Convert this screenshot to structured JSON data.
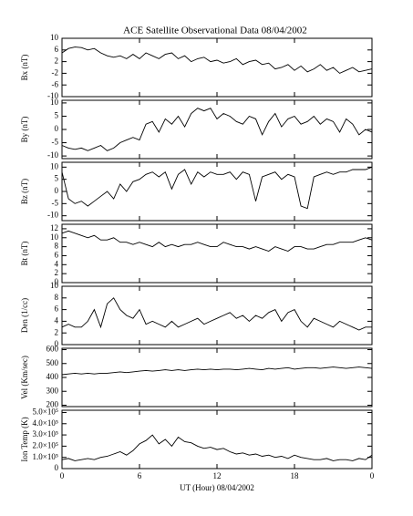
{
  "chart_data": [
    {
      "type": "line",
      "title": "ACE Satellite Observational Data   08/04/2002",
      "ylabel": "Bx (nT)",
      "color": "#000000",
      "x": [
        0,
        0.5,
        1,
        1.5,
        2,
        2.5,
        3,
        3.5,
        4,
        4.5,
        5,
        5.5,
        6,
        6.5,
        7,
        7.5,
        8,
        8.5,
        9,
        9.5,
        10,
        10.5,
        11,
        11.5,
        12,
        12.5,
        13,
        13.5,
        14,
        14.5,
        15,
        15.5,
        16,
        16.5,
        17,
        17.5,
        18,
        18.5,
        19,
        19.5,
        20,
        20.5,
        21,
        21.5,
        22,
        22.5,
        23,
        23.5,
        24
      ],
      "values": [
        5,
        6.5,
        7,
        6.8,
        6,
        6.5,
        5,
        4,
        3.5,
        4,
        3,
        4.5,
        3,
        5,
        4,
        3,
        4.5,
        5,
        3,
        4,
        2,
        3,
        3.5,
        2,
        2.5,
        1.5,
        2,
        3,
        1,
        2,
        2.5,
        1,
        1.5,
        -0.5,
        0,
        1,
        -1,
        0.5,
        -1.5,
        -0.5,
        1,
        -1,
        0,
        -2,
        -1,
        0,
        -1.5,
        -1,
        -0.5
      ],
      "xlim": [
        0,
        24
      ],
      "xticks": [
        0,
        6,
        12,
        18,
        24
      ],
      "ylim": [
        -10,
        10
      ],
      "yticks": [
        -10,
        -6,
        -2,
        2,
        6,
        10
      ]
    },
    {
      "type": "line",
      "ylabel": "By (nT)",
      "color": "#000000",
      "x": [
        0,
        0.5,
        1,
        1.5,
        2,
        2.5,
        3,
        3.5,
        4,
        4.5,
        5,
        5.5,
        6,
        6.5,
        7,
        7.5,
        8,
        8.5,
        9,
        9.5,
        10,
        10.5,
        11,
        11.5,
        12,
        12.5,
        13,
        13.5,
        14,
        14.5,
        15,
        15.5,
        16,
        16.5,
        17,
        17.5,
        18,
        18.5,
        19,
        19.5,
        20,
        20.5,
        21,
        21.5,
        22,
        22.5,
        23,
        23.5,
        24
      ],
      "values": [
        -6,
        -7,
        -7.5,
        -7,
        -8,
        -7,
        -6,
        -8,
        -7,
        -5,
        -4,
        -3,
        -4,
        2,
        3,
        -1,
        4,
        2,
        5,
        1,
        6,
        8,
        7,
        8,
        4,
        6,
        5,
        3,
        2,
        5,
        4,
        -2,
        3,
        6,
        1,
        4,
        5,
        2,
        3,
        5,
        2,
        4,
        3,
        -1,
        4,
        2,
        -2,
        0,
        -1
      ],
      "xlim": [
        0,
        24
      ],
      "xticks": [
        0,
        6,
        12,
        18,
        24
      ],
      "ylim": [
        -11,
        11
      ],
      "yticks": [
        -10,
        -5,
        0,
        5,
        10
      ]
    },
    {
      "type": "line",
      "ylabel": "Bz (nT)",
      "color": "#000000",
      "x": [
        0,
        0.5,
        1,
        1.5,
        2,
        2.5,
        3,
        3.5,
        4,
        4.5,
        5,
        5.5,
        6,
        6.5,
        7,
        7.5,
        8,
        8.5,
        9,
        9.5,
        10,
        10.5,
        11,
        11.5,
        12,
        12.5,
        13,
        13.5,
        14,
        14.5,
        15,
        15.5,
        16,
        16.5,
        17,
        17.5,
        18,
        18.5,
        19,
        19.5,
        20,
        20.5,
        21,
        21.5,
        22,
        22.5,
        23,
        23.5,
        24
      ],
      "values": [
        8,
        -3,
        -5,
        -4,
        -6,
        -4,
        -2,
        0,
        -3,
        3,
        0,
        4,
        5,
        7,
        8,
        6,
        8,
        1,
        7,
        9,
        3,
        8,
        6,
        8,
        7,
        7,
        8,
        5,
        8,
        7,
        -4,
        6,
        7,
        8,
        5,
        7,
        6,
        -6,
        -7,
        6,
        7,
        8,
        7,
        8,
        8,
        9,
        9,
        9,
        10
      ],
      "xlim": [
        0,
        24
      ],
      "xticks": [
        0,
        6,
        12,
        18,
        24
      ],
      "ylim": [
        -12,
        12
      ],
      "yticks": [
        -10,
        -5,
        0,
        5,
        10
      ]
    },
    {
      "type": "line",
      "ylabel": "Bt (nT)",
      "color": "#000000",
      "x": [
        0,
        0.5,
        1,
        1.5,
        2,
        2.5,
        3,
        3.5,
        4,
        4.5,
        5,
        5.5,
        6,
        6.5,
        7,
        7.5,
        8,
        8.5,
        9,
        9.5,
        10,
        10.5,
        11,
        11.5,
        12,
        12.5,
        13,
        13.5,
        14,
        14.5,
        15,
        15.5,
        16,
        16.5,
        17,
        17.5,
        18,
        18.5,
        19,
        19.5,
        20,
        20.5,
        21,
        21.5,
        22,
        22.5,
        23,
        23.5,
        24
      ],
      "values": [
        11,
        11.5,
        11,
        10.5,
        10,
        10.5,
        9.5,
        9.5,
        10,
        9,
        9,
        8.5,
        9,
        8.5,
        8,
        9,
        8,
        8.5,
        8,
        8.5,
        8.5,
        9,
        8.5,
        8,
        8,
        9,
        8.5,
        8,
        8,
        7.5,
        8,
        7.5,
        7,
        8,
        7.5,
        7,
        8,
        8,
        7.5,
        7.5,
        8,
        8.5,
        8.5,
        9,
        9,
        9,
        9.5,
        10,
        9.5
      ],
      "xlim": [
        0,
        24
      ],
      "xticks": [
        0,
        6,
        12,
        18,
        24
      ],
      "ylim": [
        0,
        13
      ],
      "yticks": [
        0,
        2,
        4,
        6,
        8,
        10,
        12
      ]
    },
    {
      "type": "line",
      "ylabel": "Den (1/cc)",
      "color": "#000000",
      "x": [
        0,
        0.5,
        1,
        1.5,
        2,
        2.5,
        3,
        3.5,
        4,
        4.5,
        5,
        5.5,
        6,
        6.5,
        7,
        7.5,
        8,
        8.5,
        9,
        9.5,
        10,
        10.5,
        11,
        11.5,
        12,
        12.5,
        13,
        13.5,
        14,
        14.5,
        15,
        15.5,
        16,
        16.5,
        17,
        17.5,
        18,
        18.5,
        19,
        19.5,
        20,
        20.5,
        21,
        21.5,
        22,
        22.5,
        23,
        23.5,
        24
      ],
      "values": [
        3,
        3.5,
        3,
        3,
        4,
        6,
        3,
        7,
        8,
        6,
        5,
        4.5,
        6,
        3.5,
        4,
        3.5,
        3,
        4,
        3,
        3.5,
        4,
        4.5,
        3.5,
        4,
        4.5,
        5,
        5.5,
        4.5,
        5,
        4,
        5,
        4.5,
        5.5,
        6,
        4,
        5.5,
        6,
        4,
        3,
        4.5,
        4,
        3.5,
        3,
        4,
        3.5,
        3,
        2.5,
        3,
        3
      ],
      "xlim": [
        0,
        24
      ],
      "xticks": [
        0,
        6,
        12,
        18,
        24
      ],
      "ylim": [
        0,
        10
      ],
      "yticks": [
        0,
        2,
        4,
        6,
        8,
        10
      ]
    },
    {
      "type": "line",
      "ylabel": "Vel (Km/sec)",
      "color": "#000000",
      "x": [
        0,
        0.5,
        1,
        1.5,
        2,
        2.5,
        3,
        3.5,
        4,
        4.5,
        5,
        5.5,
        6,
        6.5,
        7,
        7.5,
        8,
        8.5,
        9,
        9.5,
        10,
        10.5,
        11,
        11.5,
        12,
        12.5,
        13,
        13.5,
        14,
        14.5,
        15,
        15.5,
        16,
        16.5,
        17,
        17.5,
        18,
        18.5,
        19,
        19.5,
        20,
        20.5,
        21,
        21.5,
        22,
        22.5,
        23,
        23.5,
        24
      ],
      "values": [
        420,
        425,
        430,
        425,
        430,
        425,
        430,
        430,
        435,
        440,
        435,
        440,
        445,
        450,
        445,
        450,
        455,
        450,
        455,
        450,
        455,
        460,
        455,
        460,
        455,
        460,
        460,
        455,
        460,
        465,
        460,
        455,
        465,
        460,
        465,
        470,
        460,
        465,
        470,
        470,
        465,
        470,
        475,
        470,
        465,
        470,
        475,
        470,
        465
      ],
      "xlim": [
        0,
        24
      ],
      "xticks": [
        0,
        6,
        12,
        18,
        24
      ],
      "ylim": [
        190,
        610
      ],
      "yticks": [
        200,
        300,
        400,
        500,
        600
      ]
    },
    {
      "type": "line",
      "ylabel": "Ion Temp (K)",
      "xlabel": "UT (Hour)   08/04/2002",
      "color": "#000000",
      "x": [
        0,
        0.5,
        1,
        1.5,
        2,
        2.5,
        3,
        3.5,
        4,
        4.5,
        5,
        5.5,
        6,
        6.5,
        7,
        7.5,
        8,
        8.5,
        9,
        9.5,
        10,
        10.5,
        11,
        11.5,
        12,
        12.5,
        13,
        13.5,
        14,
        14.5,
        15,
        15.5,
        16,
        16.5,
        17,
        17.5,
        18,
        18.5,
        19,
        19.5,
        20,
        20.5,
        21,
        21.5,
        22,
        22.5,
        23,
        23.5,
        24
      ],
      "values": [
        80000,
        90000,
        70000,
        80000,
        90000,
        80000,
        100000,
        110000,
        130000,
        150000,
        120000,
        160000,
        220000,
        250000,
        300000,
        220000,
        260000,
        200000,
        280000,
        240000,
        230000,
        200000,
        180000,
        190000,
        170000,
        180000,
        150000,
        130000,
        140000,
        120000,
        130000,
        110000,
        120000,
        100000,
        110000,
        90000,
        120000,
        100000,
        90000,
        80000,
        80000,
        90000,
        70000,
        80000,
        80000,
        70000,
        90000,
        80000,
        120000
      ],
      "xlim": [
        0,
        24
      ],
      "xticks": [
        0,
        6,
        12,
        18,
        {
          "value": 24,
          "label": "0"
        }
      ],
      "ylim": [
        0,
        520000
      ],
      "yticks": [
        0,
        {
          "value": 100000,
          "label": "1.0×10⁵"
        },
        {
          "value": 200000,
          "label": "2.0×10⁵"
        },
        {
          "value": 300000,
          "label": "3.0×10⁵"
        },
        {
          "value": 400000,
          "label": "4.0×10⁵"
        },
        {
          "value": 500000,
          "label": "5.0×10⁵"
        }
      ]
    }
  ]
}
